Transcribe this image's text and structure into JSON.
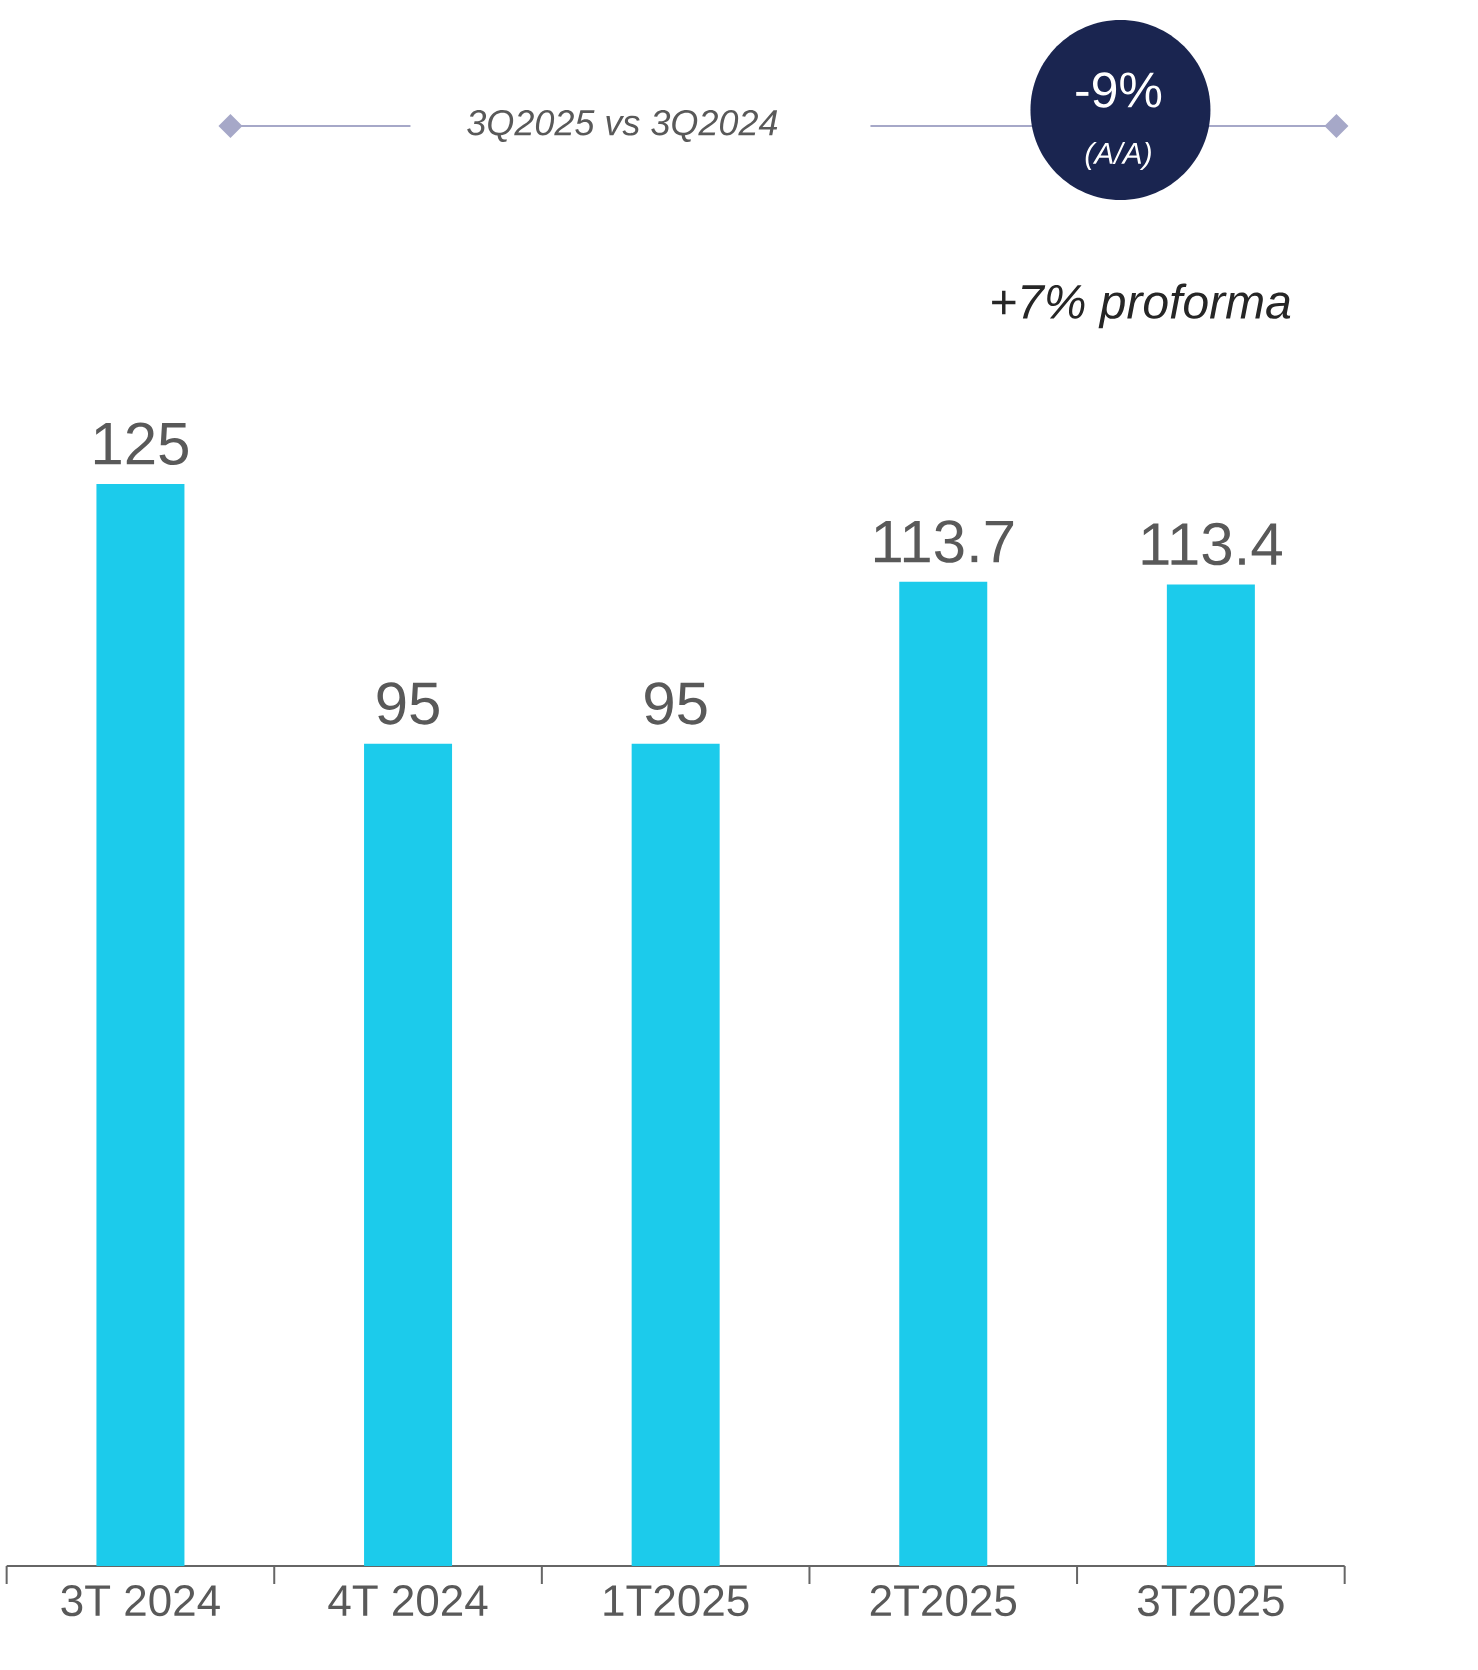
{
  "chart_data": {
    "type": "bar",
    "categories": [
      "3T 2024",
      "4T 2024",
      "1T2025",
      "2T2025",
      "3T2025"
    ],
    "values": [
      125,
      95,
      95,
      113.7,
      113.4
    ],
    "color": "#1ccbeb",
    "data_labels": true,
    "annotations": [
      "3Q2025 vs 3Q2024",
      "-9%",
      "(A/A)",
      "+7% proforma"
    ]
  }
}
